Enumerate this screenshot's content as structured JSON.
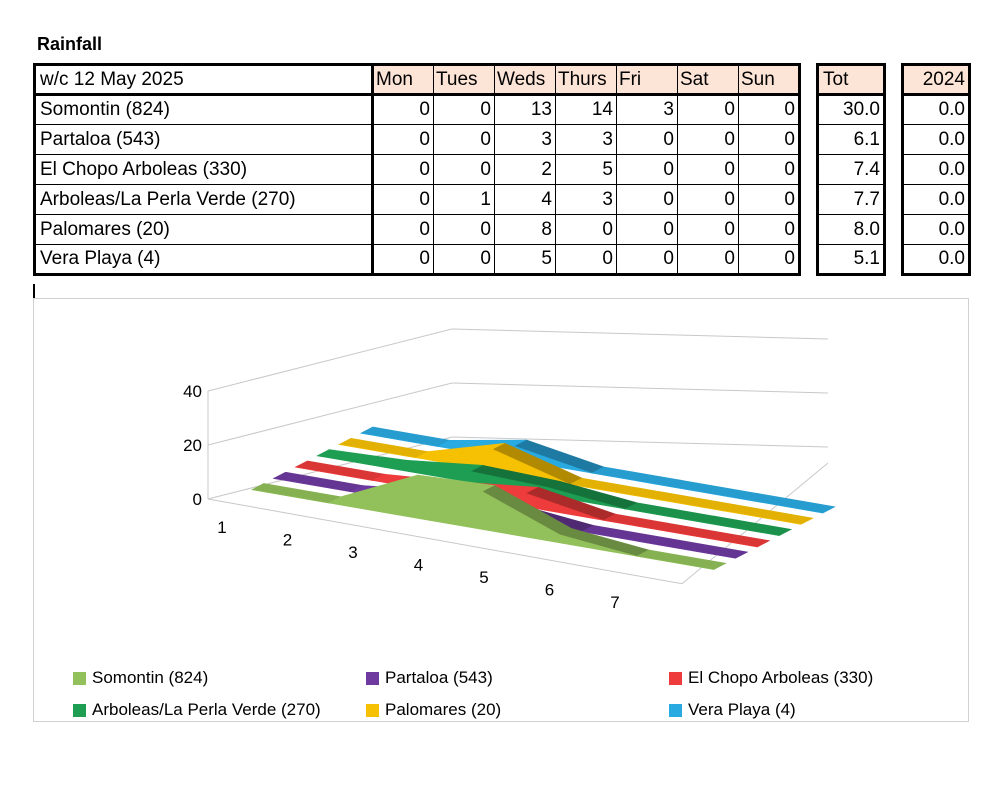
{
  "title": "Rainfall",
  "table": {
    "week_label": "w/c 12 May 2025",
    "day_headers": [
      "Mon",
      "Tues",
      "Weds",
      "Thurs",
      "Fri",
      "Sat",
      "Sun"
    ],
    "total_header": "Tot",
    "prev_year_header": "2024",
    "rows": [
      {
        "name": "Somontin (824)",
        "days": [
          "0",
          "0",
          "13",
          "14",
          "3",
          "0",
          "0"
        ],
        "total": "30.0",
        "prev": "0.0"
      },
      {
        "name": "Partaloa (543)",
        "days": [
          "0",
          "0",
          "3",
          "3",
          "0",
          "0",
          "0"
        ],
        "total": "6.1",
        "prev": "0.0"
      },
      {
        "name": "El Chopo Arboleas (330)",
        "days": [
          "0",
          "0",
          "2",
          "5",
          "0",
          "0",
          "0"
        ],
        "total": "7.4",
        "prev": "0.0"
      },
      {
        "name": "Arboleas/La Perla Verde (270)",
        "days": [
          "0",
          "1",
          "4",
          "3",
          "0",
          "0",
          "0"
        ],
        "total": "7.7",
        "prev": "0.0"
      },
      {
        "name": "Palomares (20)",
        "days": [
          "0",
          "0",
          "8",
          "0",
          "0",
          "0",
          "0"
        ],
        "total": "8.0",
        "prev": "0.0"
      },
      {
        "name": "Vera Playa (4)",
        "days": [
          "0",
          "0",
          "5",
          "0",
          "0",
          "0",
          "0"
        ],
        "total": "5.1",
        "prev": "0.0"
      }
    ]
  },
  "chart_data": {
    "type": "area",
    "subtype": "3d-area",
    "x": [
      1,
      2,
      3,
      4,
      5,
      6,
      7
    ],
    "y_ticks": [
      0,
      20,
      40
    ],
    "ylim": [
      0,
      40
    ],
    "grid": true,
    "legend_position": "bottom",
    "series": [
      {
        "name": "Somontin (824)",
        "values": [
          0,
          0,
          13,
          14,
          3,
          0,
          0
        ],
        "color": "#92c05a"
      },
      {
        "name": "Partaloa (543)",
        "values": [
          0,
          0,
          3,
          3,
          0,
          0,
          0
        ],
        "color": "#6e3aa0"
      },
      {
        "name": "El Chopo Arboleas (330)",
        "values": [
          0,
          0,
          2,
          5,
          0,
          0,
          0
        ],
        "color": "#ee3b3b"
      },
      {
        "name": "Arboleas/La Perla Verde (270)",
        "values": [
          0,
          1,
          4,
          3,
          0,
          0,
          0
        ],
        "color": "#1e9e52"
      },
      {
        "name": "Palomares (20)",
        "values": [
          0,
          0,
          8,
          0,
          0,
          0,
          0
        ],
        "color": "#f6c003"
      },
      {
        "name": "Vera Playa (4)",
        "values": [
          0,
          0,
          5,
          0,
          0,
          0,
          0
        ],
        "color": "#29aae1"
      }
    ]
  }
}
